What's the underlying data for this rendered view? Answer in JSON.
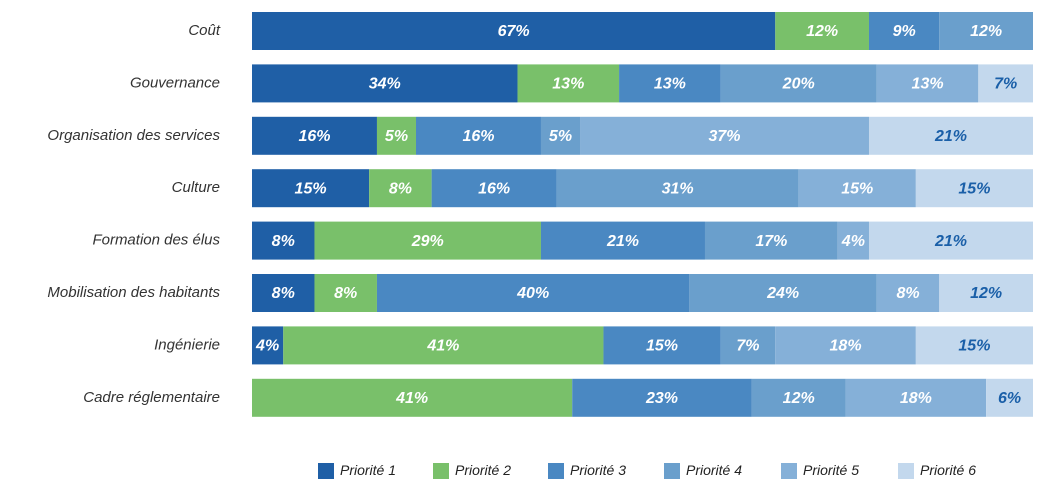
{
  "chart_data": {
    "type": "stacked-bar-horizontal",
    "categories": [
      "Coût",
      "Gouvernance",
      "Organisation des services",
      "Culture",
      "Formation des élus",
      "Mobilisation des habitants",
      "Ingénierie",
      "Cadre réglementaire"
    ],
    "series": [
      {
        "name": "Priorité 1",
        "color": "#1f5fa6",
        "label_color": "#ffffff",
        "values": [
          67,
          34,
          16,
          15,
          8,
          8,
          4,
          null
        ],
        "value_labels": [
          "67%",
          "34%",
          "16%",
          "15%",
          "8%",
          "8%",
          "4%",
          null
        ]
      },
      {
        "name": "Priorité 2",
        "color": "#79c06a",
        "label_color": "#ffffff",
        "values": [
          12,
          13,
          5,
          8,
          29,
          8,
          41,
          41
        ],
        "value_labels": [
          "12%",
          "13%",
          "5%",
          "8%",
          "29%",
          "8%",
          "41%",
          "41%"
        ]
      },
      {
        "name": "Priorité 3",
        "color": "#4a88c2",
        "label_color": "#ffffff",
        "values": [
          9,
          13,
          16,
          16,
          21,
          40,
          15,
          23
        ],
        "value_labels": [
          "9%",
          "13%",
          "16%",
          "16%",
          "21%",
          "40%",
          "15%",
          "23%"
        ]
      },
      {
        "name": "Priorité 4",
        "color": "#6a9fcc",
        "label_color": "#ffffff",
        "values": [
          12,
          20,
          5,
          31,
          17,
          24,
          7,
          12
        ],
        "value_labels": [
          "12%",
          "20%",
          "5%",
          "31%",
          "17%",
          "24%",
          "7%",
          "12%"
        ]
      },
      {
        "name": "Priorité 5",
        "color": "#85b0d8",
        "label_color": "#ffffff",
        "values": [
          null,
          13,
          37,
          15,
          4,
          8,
          18,
          18
        ],
        "value_labels": [
          null,
          "13%",
          "37%",
          "15%",
          "4%",
          "8%",
          "18%",
          "18%"
        ]
      },
      {
        "name": "Priorité 6",
        "color": "#c3d8ed",
        "label_color": "#1a5fa8",
        "values": [
          null,
          7,
          21,
          15,
          21,
          12,
          15,
          6
        ],
        "value_labels": [
          null,
          "7%",
          "21%",
          "15%",
          "21%",
          "12%",
          "15%",
          "6%"
        ]
      }
    ]
  }
}
